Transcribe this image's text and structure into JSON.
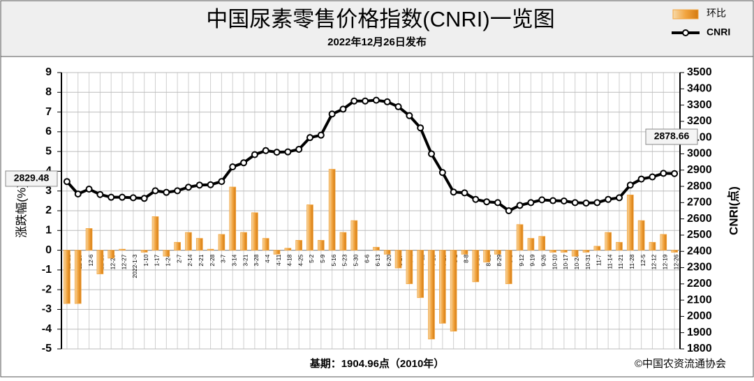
{
  "chart_data": {
    "type": "combo",
    "title": "中国尿素零售价格指数(CNRI)一览图",
    "subtitle": "2022年12月26日发布",
    "ylabel": "涨跌幅(%)",
    "y2label": "CNRI(点)",
    "footnote": "基期：1904.96点（2010年）",
    "source": "©中国农资流通协会",
    "categories": [
      "11-22",
      "11-29",
      "12-6",
      "12-13",
      "12-20",
      "12-27",
      "2022-1-3",
      "1-10",
      "1-17",
      "1-24",
      "2-7",
      "2-14",
      "2-21",
      "2-28",
      "3-7",
      "3-14",
      "3-21",
      "3-28",
      "4-4",
      "4-11",
      "4-18",
      "4-25",
      "5-2",
      "5-9",
      "5-16",
      "5-23",
      "5-30",
      "6-6",
      "6-13",
      "6-20",
      "6-27",
      "7-4",
      "7-11",
      "7-18",
      "7-25",
      "8-1",
      "8-8",
      "8-15",
      "8-22",
      "8-29",
      "9-5",
      "9-12",
      "9-19",
      "9-26",
      "10-10",
      "10-17",
      "10-24",
      "10-31",
      "11-7",
      "11-14",
      "11-21",
      "11-28",
      "12-5",
      "12-12",
      "12-19",
      "12-26"
    ],
    "series": [
      {
        "name": "环比",
        "type": "bar",
        "color": "#f2a540",
        "values": [
          -2.7,
          -2.7,
          1.1,
          -1.2,
          -0.4,
          0.05,
          0,
          -0.1,
          1.7,
          -0.3,
          0.4,
          0.9,
          0.6,
          0.05,
          0.8,
          3.2,
          0.9,
          1.9,
          0.6,
          -0.2,
          0.1,
          0.5,
          2.3,
          0.5,
          4.1,
          0.9,
          1.5,
          0,
          0.15,
          -0.2,
          -0.9,
          -1.7,
          -2.4,
          -4.5,
          -3.7,
          -4.1,
          -0.2,
          -1.6,
          -0.6,
          -0.2,
          -1.7,
          1.3,
          0.6,
          0.7,
          -0.1,
          -0.1,
          -0.3,
          -0.1,
          0.2,
          0.9,
          0.4,
          2.8,
          1.5,
          0.4,
          0.8,
          -0.1
        ]
      },
      {
        "name": "CNRI",
        "type": "line",
        "axis": "y2",
        "color": "#000000",
        "values": [
          2829.48,
          2753,
          2783,
          2750,
          2733,
          2733,
          2730,
          2726,
          2773,
          2763,
          2773,
          2795,
          2808,
          2810,
          2830,
          2920,
          2945,
          2995,
          3020,
          3010,
          3012,
          3028,
          3100,
          3115,
          3245,
          3275,
          3325,
          3325,
          3330,
          3320,
          3290,
          3235,
          3160,
          3000,
          2885,
          2765,
          2760,
          2720,
          2705,
          2700,
          2650,
          2683,
          2700,
          2717,
          2712,
          2710,
          2700,
          2697,
          2700,
          2720,
          2730,
          2808,
          2845,
          2858,
          2880,
          2878.66
        ]
      }
    ],
    "ylim": [
      -5,
      9
    ],
    "yticks": [
      -5,
      -4,
      -3,
      -2,
      -1,
      0,
      1,
      2,
      3,
      4,
      5,
      6,
      7,
      8,
      9
    ],
    "y2lim": [
      1800,
      3500
    ],
    "y2ticks": [
      1800,
      1900,
      2000,
      2100,
      2200,
      2300,
      2400,
      2500,
      2600,
      2700,
      2800,
      2900,
      3000,
      3100,
      3200,
      3300,
      3400,
      3500
    ],
    "grid": true,
    "legend": "top-right"
  }
}
